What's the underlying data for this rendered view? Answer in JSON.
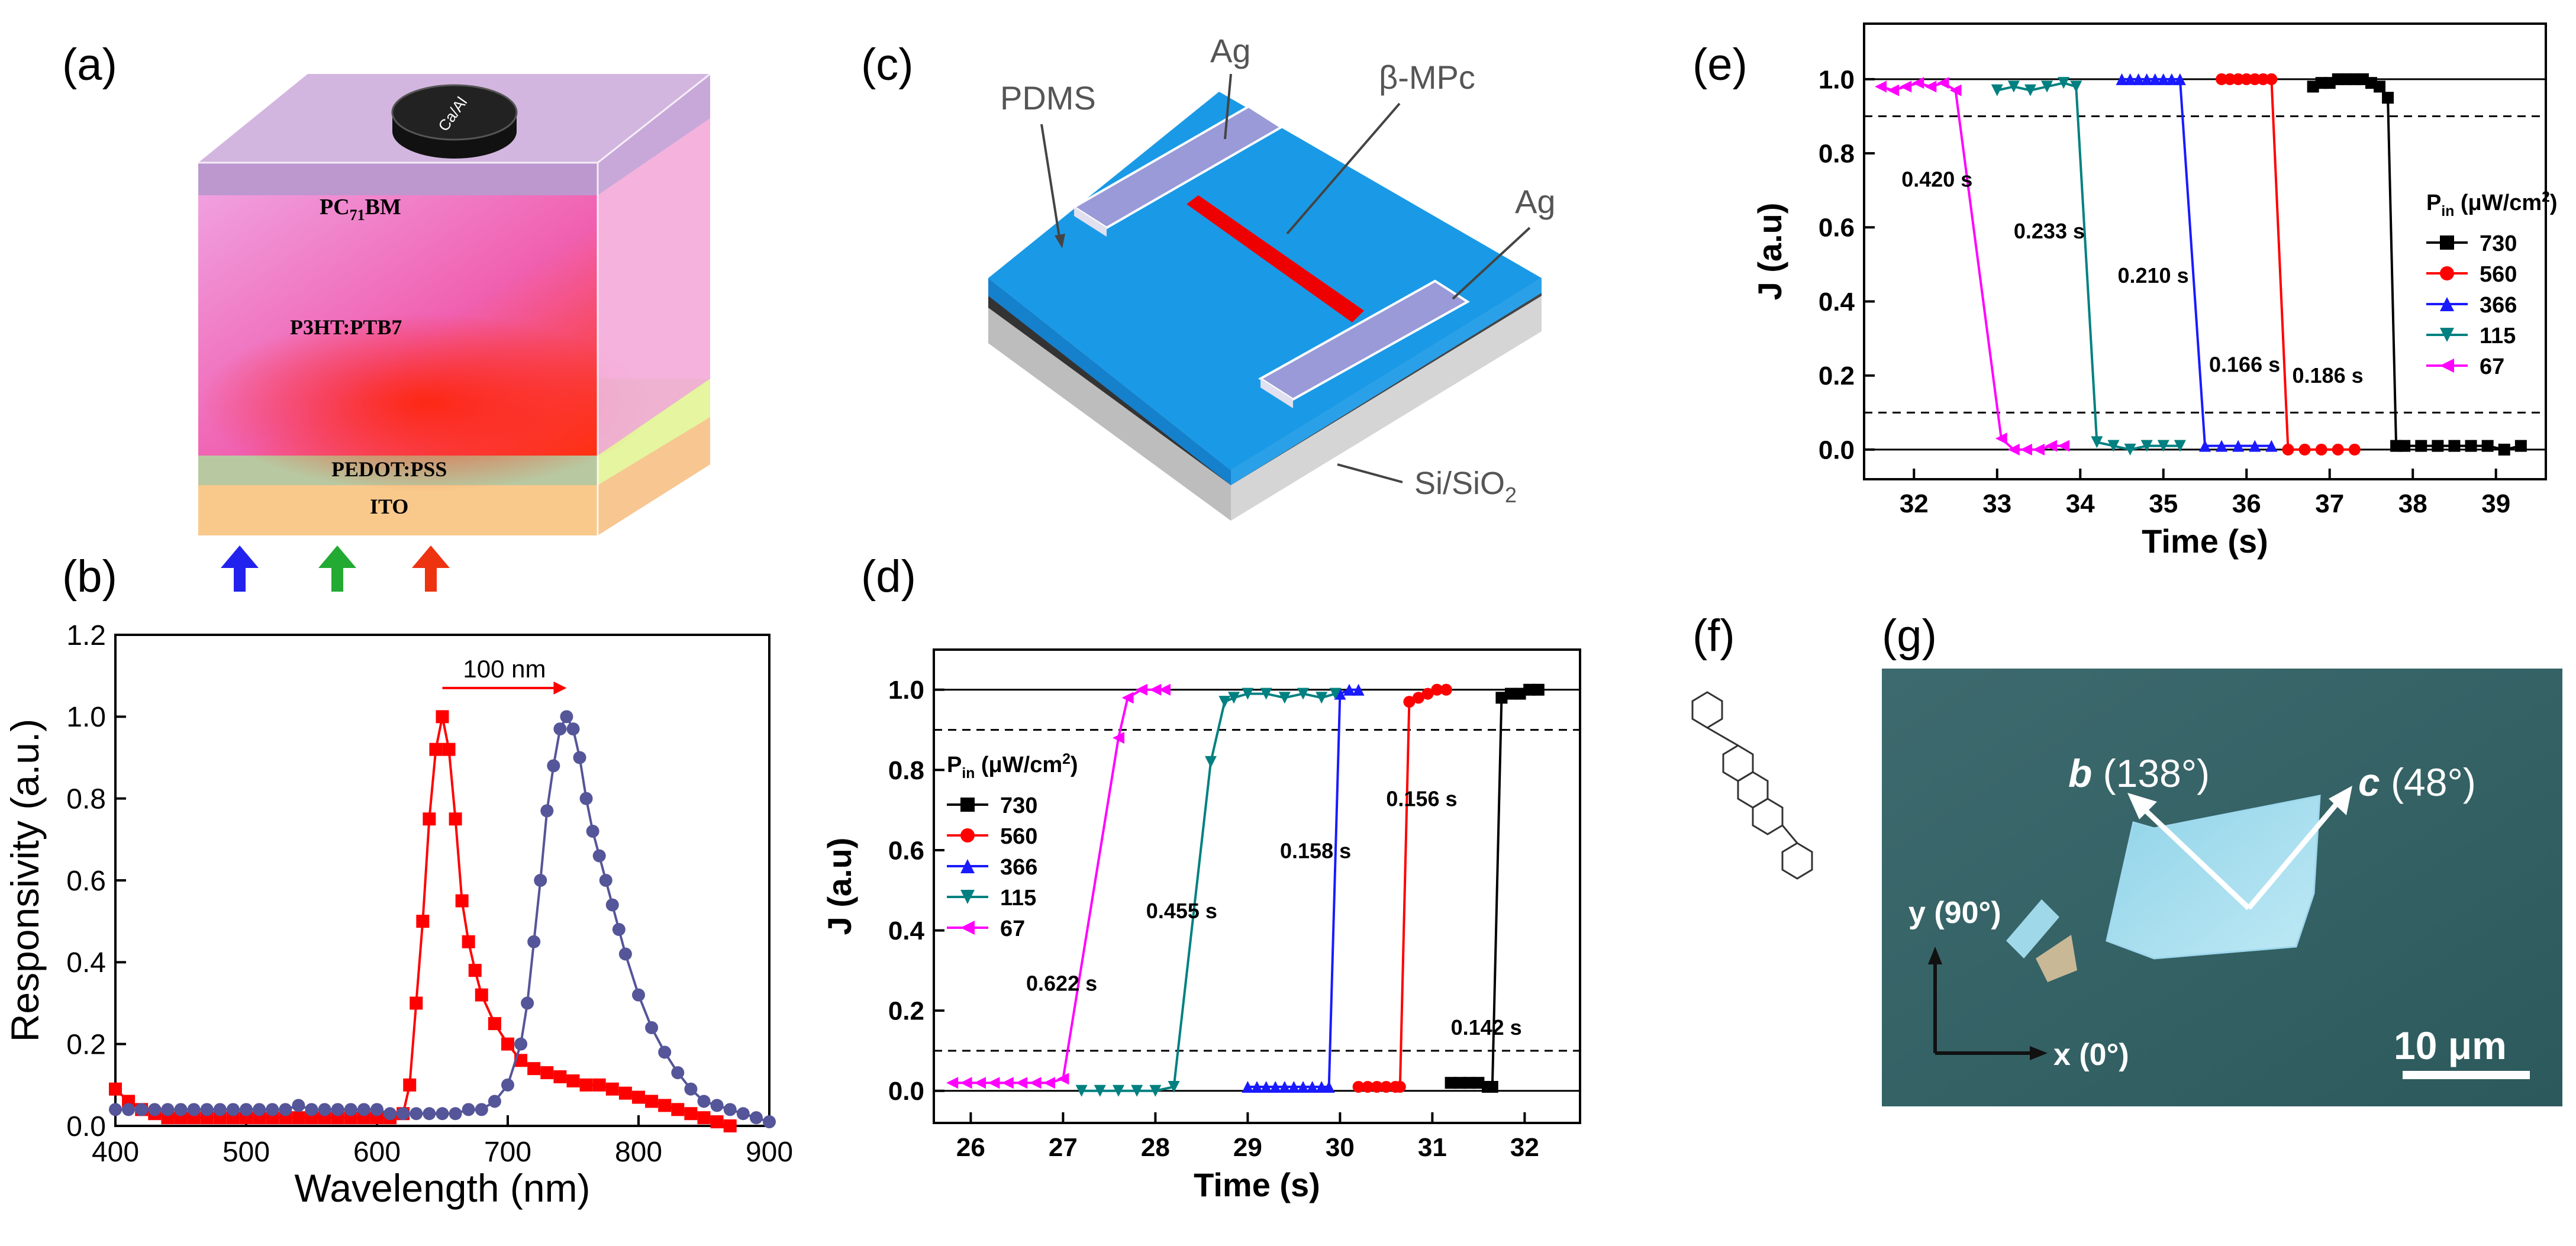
{
  "panel_labels": {
    "a": "(a)",
    "b": "(b)",
    "c": "(c)",
    "d": "(d)",
    "e": "(e)",
    "f": "(f)",
    "g": "(g)"
  },
  "colors": {
    "red": "#ff0000",
    "blue": "#1a1aff",
    "teal": "#008080",
    "magenta": "#ff00ff",
    "black": "#000000",
    "slate": "#555599"
  },
  "panel_a": {
    "electrode": "Ca/Al",
    "layers": [
      "PC71BM",
      "P3HT:PTB7",
      "PEDOT:PSS",
      "ITO"
    ],
    "layer_labels": {
      "pcbm": "PC",
      "pcbm_sub": "71",
      "pcbm_tail": "BM",
      "blend": "P3HT:PTB7",
      "pedot": "PEDOT:PSS",
      "ito": "ITO"
    },
    "arrow_colors": [
      "#2222ee",
      "#22aa33",
      "#ee3311"
    ]
  },
  "panel_c": {
    "labels": {
      "pdms": "PDMS",
      "ag_top": "Ag",
      "mpc": "β-MPc",
      "ag_right": "Ag",
      "sub": "Si/SiO",
      "sub_sub": "2"
    }
  },
  "panel_f": {
    "molecule": "2,6-diphenylanthracene"
  },
  "panel_g": {
    "b_label": "b",
    "b_angle": "(138°)",
    "c_label": "c",
    "c_angle": "(48°)",
    "y_label": "y (90°)",
    "x_label": "x (0°)",
    "scale": "10 μm"
  },
  "chart_data": [
    {
      "id": "b",
      "type": "line",
      "xlabel": "Wavelength (nm)",
      "ylabel": "Responsivity (a.u.)",
      "xlim": [
        400,
        900
      ],
      "ylim": [
        0,
        1.2
      ],
      "xticks": [
        400,
        500,
        600,
        700,
        800,
        900
      ],
      "yticks": [
        0.0,
        0.2,
        0.4,
        0.6,
        0.8,
        1.0,
        1.2
      ],
      "annotation": "100 nm",
      "annotation_arrow": [
        650,
        745
      ],
      "series": [
        {
          "name": "red",
          "color": "#ff0000",
          "marker": "square",
          "x": [
            400,
            410,
            420,
            430,
            440,
            450,
            460,
            470,
            480,
            490,
            500,
            510,
            520,
            530,
            540,
            550,
            560,
            570,
            580,
            590,
            600,
            610,
            620,
            625,
            630,
            635,
            640,
            645,
            650,
            655,
            660,
            665,
            670,
            675,
            680,
            690,
            700,
            710,
            720,
            730,
            740,
            750,
            760,
            770,
            780,
            790,
            800,
            810,
            820,
            830,
            840,
            850,
            860,
            870
          ],
          "y": [
            0.09,
            0.06,
            0.04,
            0.03,
            0.02,
            0.02,
            0.02,
            0.02,
            0.02,
            0.02,
            0.02,
            0.02,
            0.02,
            0.02,
            0.02,
            0.02,
            0.02,
            0.02,
            0.02,
            0.02,
            0.02,
            0.02,
            0.03,
            0.1,
            0.3,
            0.5,
            0.75,
            0.92,
            1.0,
            0.92,
            0.75,
            0.55,
            0.45,
            0.38,
            0.32,
            0.25,
            0.2,
            0.16,
            0.14,
            0.13,
            0.12,
            0.11,
            0.1,
            0.1,
            0.09,
            0.08,
            0.07,
            0.06,
            0.05,
            0.04,
            0.03,
            0.02,
            0.01,
            0.0
          ]
        },
        {
          "name": "purple",
          "color": "#555599",
          "marker": "circle",
          "x": [
            400,
            410,
            420,
            430,
            440,
            450,
            460,
            470,
            480,
            490,
            500,
            510,
            520,
            530,
            540,
            550,
            560,
            570,
            580,
            590,
            600,
            610,
            620,
            630,
            640,
            650,
            660,
            670,
            680,
            690,
            700,
            710,
            715,
            720,
            725,
            730,
            735,
            740,
            745,
            750,
            755,
            760,
            765,
            770,
            775,
            780,
            785,
            790,
            800,
            810,
            820,
            830,
            840,
            850,
            860,
            870,
            880,
            890,
            900
          ],
          "y": [
            0.04,
            0.04,
            0.04,
            0.04,
            0.04,
            0.04,
            0.04,
            0.04,
            0.04,
            0.04,
            0.04,
            0.04,
            0.04,
            0.04,
            0.05,
            0.04,
            0.04,
            0.04,
            0.04,
            0.04,
            0.04,
            0.03,
            0.03,
            0.03,
            0.03,
            0.03,
            0.03,
            0.04,
            0.04,
            0.06,
            0.1,
            0.2,
            0.3,
            0.45,
            0.6,
            0.77,
            0.88,
            0.97,
            1.0,
            0.97,
            0.9,
            0.8,
            0.72,
            0.66,
            0.6,
            0.54,
            0.48,
            0.42,
            0.32,
            0.24,
            0.18,
            0.13,
            0.09,
            0.06,
            0.05,
            0.04,
            0.03,
            0.02,
            0.01
          ]
        }
      ]
    },
    {
      "id": "d",
      "type": "line",
      "xlabel": "Time (s)",
      "ylabel": "J (a.u)",
      "xlim": [
        25.6,
        32.6
      ],
      "ylim": [
        -0.08,
        1.1
      ],
      "xticks": [
        26,
        27,
        28,
        29,
        30,
        31,
        32
      ],
      "yticks": [
        0.0,
        0.2,
        0.4,
        0.6,
        0.8,
        1.0
      ],
      "hlines": {
        "solid": [
          0.0,
          1.0
        ],
        "dashed": [
          0.1,
          0.9
        ]
      },
      "legend_title": "P",
      "legend_title_sub": "in",
      "legend_title_unit": " (μW/cm",
      "legend_title_sup": "2",
      "legend_title_end": ")",
      "legend_position": "center-left",
      "series": [
        {
          "name": "730",
          "color": "#000000",
          "marker": "square",
          "x": [
            31.2,
            31.3,
            31.4,
            31.5,
            31.6,
            31.65,
            31.75,
            31.85,
            31.95,
            32.05,
            32.15
          ],
          "y": [
            0.02,
            0.02,
            0.02,
            0.02,
            0.01,
            0.01,
            0.98,
            0.99,
            0.99,
            1.0,
            1.0
          ]
        },
        {
          "name": "560",
          "color": "#ff0000",
          "marker": "circle",
          "x": [
            30.2,
            30.3,
            30.4,
            30.5,
            30.6,
            30.65,
            30.75,
            30.85,
            30.95,
            31.05,
            31.15
          ],
          "y": [
            0.01,
            0.01,
            0.01,
            0.01,
            0.01,
            0.01,
            0.97,
            0.98,
            0.99,
            1.0,
            1.0
          ]
        },
        {
          "name": "366",
          "color": "#1a1aff",
          "marker": "triangle-up",
          "x": [
            29.0,
            29.1,
            29.2,
            29.3,
            29.4,
            29.5,
            29.6,
            29.7,
            29.8,
            29.88,
            30.0,
            30.1,
            30.2
          ],
          "y": [
            0.01,
            0.01,
            0.01,
            0.01,
            0.01,
            0.01,
            0.01,
            0.01,
            0.01,
            0.01,
            0.99,
            1.0,
            1.0
          ]
        },
        {
          "name": "115",
          "color": "#008080",
          "marker": "triangle-down",
          "x": [
            27.2,
            27.4,
            27.6,
            27.8,
            28.0,
            28.2,
            28.6,
            28.75,
            28.85,
            29.0,
            29.2,
            29.4,
            29.6,
            29.8,
            29.95
          ],
          "y": [
            0.0,
            0.0,
            0.0,
            0.0,
            0.0,
            0.01,
            0.82,
            0.97,
            0.98,
            0.99,
            0.99,
            0.98,
            0.99,
            0.98,
            0.99
          ]
        },
        {
          "name": "67",
          "color": "#ff00ff",
          "marker": "triangle-left",
          "x": [
            25.8,
            25.95,
            26.1,
            26.25,
            26.4,
            26.55,
            26.7,
            26.85,
            27.0,
            27.6,
            27.7,
            27.85,
            28.0,
            28.1
          ],
          "y": [
            0.02,
            0.02,
            0.02,
            0.02,
            0.02,
            0.02,
            0.02,
            0.02,
            0.03,
            0.88,
            0.98,
            1.0,
            1.0,
            1.0
          ]
        }
      ],
      "time_labels": [
        {
          "text": "0.622 s",
          "x": 26.6,
          "y": 0.25
        },
        {
          "text": "0.455 s",
          "x": 27.9,
          "y": 0.43
        },
        {
          "text": "0.158 s",
          "x": 29.35,
          "y": 0.58
        },
        {
          "text": "0.156 s",
          "x": 30.5,
          "y": 0.71
        },
        {
          "text": "0.142 s",
          "x": 31.2,
          "y": 0.14
        }
      ]
    },
    {
      "id": "e",
      "type": "line",
      "xlabel": "Time (s)",
      "ylabel": "J (a.u)",
      "xlim": [
        31.4,
        39.6
      ],
      "ylim": [
        -0.08,
        1.15
      ],
      "xticks": [
        32,
        33,
        34,
        35,
        36,
        37,
        38,
        39
      ],
      "yticks": [
        0.0,
        0.2,
        0.4,
        0.6,
        0.8,
        1.0
      ],
      "hlines": {
        "solid": [
          0.0,
          1.0
        ],
        "dashed": [
          0.1,
          0.9
        ]
      },
      "legend_title": "P",
      "legend_title_sub": "in",
      "legend_title_unit": " (μW/cm",
      "legend_title_sup": "2",
      "legend_title_end": ")",
      "legend_position": "right",
      "series": [
        {
          "name": "730",
          "color": "#000000",
          "marker": "square",
          "x": [
            36.8,
            36.9,
            37.0,
            37.1,
            37.2,
            37.3,
            37.4,
            37.5,
            37.6,
            37.7,
            37.8,
            37.9,
            38.1,
            38.3,
            38.5,
            38.7,
            38.9,
            39.1,
            39.3
          ],
          "y": [
            0.98,
            0.99,
            0.99,
            1.0,
            1.0,
            1.0,
            1.0,
            0.99,
            0.98,
            0.95,
            0.01,
            0.01,
            0.01,
            0.01,
            0.01,
            0.01,
            0.01,
            0.0,
            0.01
          ]
        },
        {
          "name": "560",
          "color": "#ff0000",
          "marker": "circle",
          "x": [
            35.7,
            35.8,
            35.9,
            36.0,
            36.1,
            36.2,
            36.3,
            36.5,
            36.7,
            36.9,
            37.1,
            37.3
          ],
          "y": [
            1.0,
            1.0,
            1.0,
            1.0,
            1.0,
            1.0,
            1.0,
            0.0,
            0.0,
            0.0,
            0.0,
            0.0
          ]
        },
        {
          "name": "366",
          "color": "#1a1aff",
          "marker": "triangle-up",
          "x": [
            34.5,
            34.6,
            34.7,
            34.8,
            34.9,
            35.0,
            35.1,
            35.2,
            35.5,
            35.7,
            35.9,
            36.1,
            36.3
          ],
          "y": [
            1.0,
            1.0,
            1.0,
            1.0,
            1.0,
            1.0,
            1.0,
            1.0,
            0.01,
            0.01,
            0.01,
            0.01,
            0.01
          ]
        },
        {
          "name": "115",
          "color": "#008080",
          "marker": "triangle-down",
          "x": [
            33.0,
            33.2,
            33.4,
            33.6,
            33.8,
            33.95,
            34.2,
            34.4,
            34.6,
            34.8,
            35.0,
            35.2
          ],
          "y": [
            0.97,
            0.98,
            0.97,
            0.98,
            0.99,
            0.98,
            0.02,
            0.01,
            0.0,
            0.01,
            0.01,
            0.01
          ]
        },
        {
          "name": "67",
          "color": "#ff00ff",
          "marker": "triangle-left",
          "x": [
            31.6,
            31.75,
            31.9,
            32.05,
            32.2,
            32.35,
            32.5,
            33.05,
            33.2,
            33.35,
            33.5,
            33.65,
            33.8
          ],
          "y": [
            0.98,
            0.97,
            0.98,
            0.99,
            0.98,
            0.99,
            0.97,
            0.03,
            0.0,
            0.0,
            0.0,
            0.01,
            0.01
          ]
        }
      ],
      "time_labels": [
        {
          "text": "0.420 s",
          "x": 31.85,
          "y": 0.71
        },
        {
          "text": "0.233 s",
          "x": 33.2,
          "y": 0.57
        },
        {
          "text": "0.210 s",
          "x": 34.45,
          "y": 0.45
        },
        {
          "text": "0.166 s",
          "x": 35.55,
          "y": 0.21
        },
        {
          "text": "0.186 s",
          "x": 36.55,
          "y": 0.18
        }
      ]
    }
  ]
}
